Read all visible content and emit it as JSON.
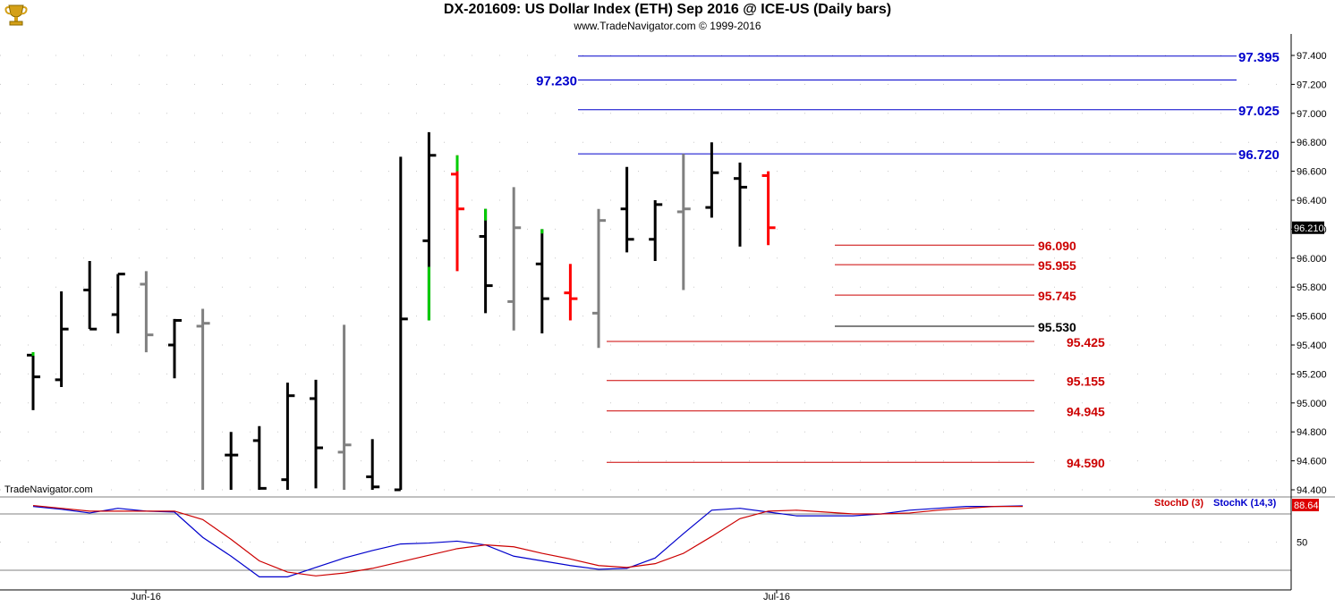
{
  "header": {
    "title": "DX-201609:  US Dollar Index (ETH) Sep 2016 @ ICE-US  (Daily bars)",
    "subtitle": "www.TradeNavigator.com © 1999-2016",
    "logo_icon": "trophy-icon"
  },
  "watermark": "TradeNavigator.com",
  "colors": {
    "up": "#000000",
    "down": "#ff0000",
    "neutral": "#808080",
    "up_green": "#00cc00",
    "blue_level": "#0000cc",
    "red_level": "#cc0000",
    "stoch_k": "#0000cc",
    "stoch_d": "#cc0000"
  },
  "chart_data": [
    {
      "type": "ohlc",
      "ylim": [
        94.4,
        97.5
      ],
      "yticks": [
        "97.400",
        "97.200",
        "97.000",
        "96.800",
        "96.600",
        "96.400",
        "96.200",
        "96.000",
        "95.800",
        "95.600",
        "95.400",
        "95.200",
        "95.000",
        "94.800",
        "94.600",
        "94.400"
      ],
      "last_value": "96.210",
      "xticks": [
        "Jun-16",
        "Jul-16"
      ],
      "bars": [
        {
          "o": 95.33,
          "h": 95.35,
          "l": 94.95,
          "c": 95.18,
          "color": "black",
          "top_green": true
        },
        {
          "o": 95.16,
          "h": 95.77,
          "l": 95.11,
          "c": 95.51,
          "color": "black"
        },
        {
          "o": 95.78,
          "h": 95.98,
          "l": 95.51,
          "c": 95.51,
          "color": "black"
        },
        {
          "o": 95.61,
          "h": 95.89,
          "l": 95.48,
          "c": 95.89,
          "color": "black"
        },
        {
          "o": 95.82,
          "h": 95.91,
          "l": 95.35,
          "c": 95.47,
          "color": "gray"
        },
        {
          "o": 95.4,
          "h": 95.58,
          "l": 95.17,
          "c": 95.57,
          "color": "black"
        },
        {
          "o": 95.53,
          "h": 95.65,
          "l": 94.4,
          "c": 95.55,
          "color": "gray"
        },
        {
          "o": 94.64,
          "h": 94.8,
          "l": 94.4,
          "c": 94.64,
          "color": "black"
        },
        {
          "o": 94.74,
          "h": 94.84,
          "l": 94.4,
          "c": 94.41,
          "color": "black"
        },
        {
          "o": 94.47,
          "h": 95.14,
          "l": 94.4,
          "c": 95.05,
          "color": "black"
        },
        {
          "o": 95.03,
          "h": 95.16,
          "l": 94.41,
          "c": 94.69,
          "color": "black"
        },
        {
          "o": 94.66,
          "h": 95.54,
          "l": 94.4,
          "c": 94.71,
          "color": "gray"
        },
        {
          "o": 94.49,
          "h": 94.75,
          "l": 94.4,
          "c": 94.42,
          "color": "black"
        },
        {
          "o": 94.4,
          "h": 96.7,
          "l": 94.4,
          "c": 95.58,
          "color": "black"
        },
        {
          "o": 96.12,
          "h": 96.87,
          "l": 95.57,
          "c": 96.71,
          "color": "black",
          "bottom_green_to": 95.94
        },
        {
          "o": 96.58,
          "h": 96.71,
          "l": 95.91,
          "c": 96.34,
          "color": "red",
          "top_green_to": 96.6
        },
        {
          "o": 96.15,
          "h": 96.34,
          "l": 95.62,
          "c": 95.81,
          "color": "black",
          "top_green_to": 96.26
        },
        {
          "o": 95.7,
          "h": 96.49,
          "l": 95.5,
          "c": 96.21,
          "color": "gray"
        },
        {
          "o": 95.96,
          "h": 96.2,
          "l": 95.48,
          "c": 95.72,
          "color": "black",
          "top_green_to": 96.17
        },
        {
          "o": 95.76,
          "h": 95.96,
          "l": 95.57,
          "c": 95.72,
          "color": "red"
        },
        {
          "o": 95.62,
          "h": 96.34,
          "l": 95.38,
          "c": 96.26,
          "color": "gray"
        },
        {
          "o": 96.34,
          "h": 96.63,
          "l": 96.04,
          "c": 96.13,
          "color": "black"
        },
        {
          "o": 96.13,
          "h": 96.4,
          "l": 95.98,
          "c": 96.37,
          "color": "black"
        },
        {
          "o": 96.32,
          "h": 96.72,
          "l": 95.78,
          "c": 96.34,
          "color": "gray"
        },
        {
          "o": 96.35,
          "h": 96.8,
          "l": 96.28,
          "c": 96.59,
          "color": "black"
        },
        {
          "o": 96.55,
          "h": 96.66,
          "l": 96.08,
          "c": 96.49,
          "color": "black"
        },
        {
          "o": 96.57,
          "h": 96.6,
          "l": 96.09,
          "c": 96.21,
          "color": "red"
        }
      ],
      "levels": [
        {
          "value": 97.395,
          "label": "97.395",
          "color": "blue",
          "x_from_bar": 13,
          "label_side": "right"
        },
        {
          "value": 97.23,
          "label": "97.230",
          "color": "blue",
          "x_from_bar": 13,
          "label_side": "left"
        },
        {
          "value": 97.025,
          "label": "97.025",
          "color": "blue",
          "x_from_bar": 13,
          "label_side": "right"
        },
        {
          "value": 96.72,
          "label": "96.720",
          "color": "blue",
          "x_from_bar": 13,
          "label_side": "right"
        },
        {
          "value": 96.09,
          "label": "96.090",
          "color": "red",
          "x_from_bar": 20,
          "label_side": "mid"
        },
        {
          "value": 95.955,
          "label": "95.955",
          "color": "red",
          "x_from_bar": 20,
          "label_side": "mid"
        },
        {
          "value": 95.745,
          "label": "95.745",
          "color": "red",
          "x_from_bar": 20,
          "label_side": "mid"
        },
        {
          "value": 95.53,
          "label": "95.530",
          "color": "black",
          "x_from_bar": 20,
          "label_side": "mid"
        },
        {
          "value": 95.425,
          "label": "95.425",
          "color": "red",
          "x_from_bar": 12,
          "label_side": "mid"
        },
        {
          "value": 95.155,
          "label": "95.155",
          "color": "red",
          "x_from_bar": 12,
          "label_side": "mid"
        },
        {
          "value": 94.945,
          "label": "94.945",
          "color": "red",
          "x_from_bar": 12,
          "label_side": "mid"
        },
        {
          "value": 94.59,
          "label": "94.590",
          "color": "red",
          "x_from_bar": 12,
          "label_side": "mid"
        }
      ]
    },
    {
      "type": "line",
      "ylim": [
        0,
        100
      ],
      "ytick": "50",
      "reference_lines": [
        80,
        20
      ],
      "last_value": "88.64",
      "series": [
        {
          "name": "StochK (14,3)",
          "color": "blue",
          "values": [
            88,
            85,
            81,
            86,
            83,
            82,
            55,
            35,
            13,
            13,
            23,
            33,
            41,
            48,
            49,
            51,
            47,
            35,
            30,
            25,
            21,
            22,
            33,
            59,
            84,
            86,
            82,
            78,
            78,
            78,
            80,
            84,
            86,
            88,
            88,
            88.64
          ]
        },
        {
          "name": "StochD (3)",
          "color": "red",
          "values": [
            89,
            86,
            83,
            83,
            83,
            83,
            74,
            53,
            30,
            18,
            14,
            17,
            22,
            29,
            36,
            43,
            47,
            45,
            38,
            32,
            25,
            23,
            27,
            38,
            56,
            75,
            83,
            84,
            82,
            80,
            80,
            81,
            84,
            86,
            88,
            88
          ]
        }
      ]
    }
  ]
}
